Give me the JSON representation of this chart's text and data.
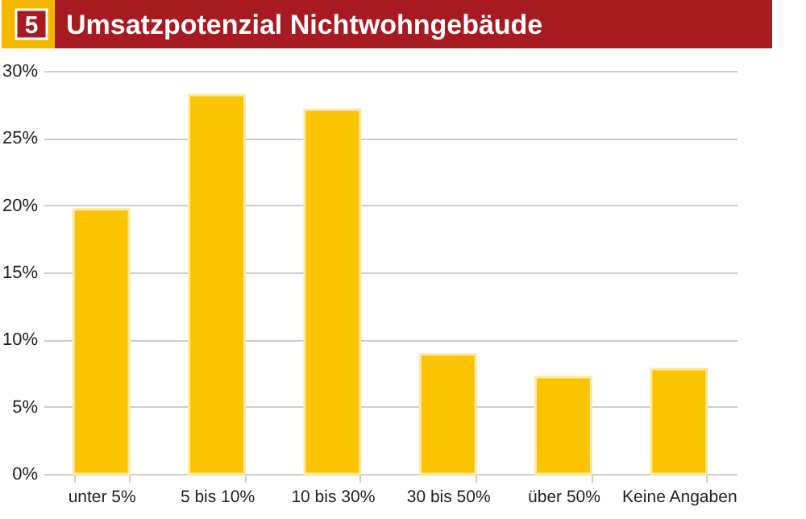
{
  "chart_data": {
    "type": "bar",
    "title": "Umsatzpotenzial Nichtwohngebäude",
    "annotations": [
      "5"
    ],
    "categories": [
      "unter 5%",
      "5 bis 10%",
      "10 bis 30%",
      "30 bis 50%",
      "über 50%",
      "Keine Angaben"
    ],
    "values": [
      19.7,
      28.2,
      27.1,
      8.9,
      7.2,
      7.8
    ],
    "color": "#fbc400",
    "ylim": [
      0,
      30
    ],
    "yticks": [
      {
        "value": 0,
        "label": "0%"
      },
      {
        "value": 5,
        "label": "5%"
      },
      {
        "value": 10,
        "label": "10%"
      },
      {
        "value": 15,
        "label": "15%"
      },
      {
        "value": 20,
        "label": "20%"
      },
      {
        "value": 25,
        "label": "25%"
      },
      {
        "value": 30,
        "label": "30%"
      }
    ],
    "grid": "y"
  }
}
